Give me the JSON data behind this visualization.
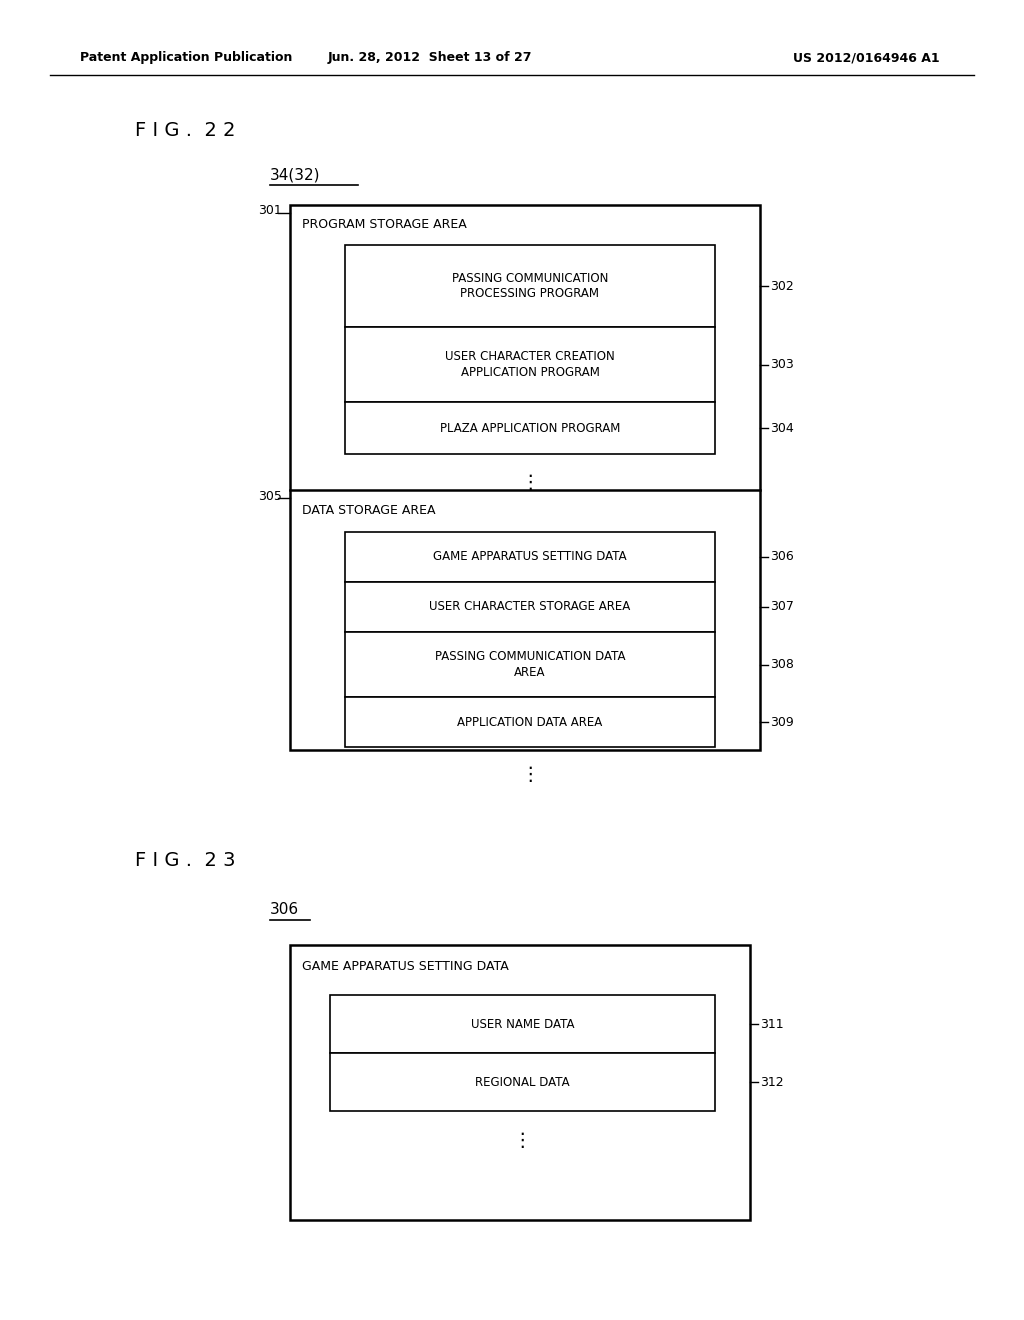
{
  "fig_width": 10.24,
  "fig_height": 13.2,
  "bg_color": "#ffffff",
  "header_left": "Patent Application Publication",
  "header_center": "Jun. 28, 2012  Sheet 13 of 27",
  "header_right": "US 2012/0164946 A1",
  "fig22_title": "F I G .  2 2",
  "fig22_label": "34(32)",
  "fig23_title": "F I G .  2 3",
  "fig23_label": "306",
  "prog_section_label": "PROGRAM STORAGE AREA",
  "data_section_label": "DATA STORAGE AREA",
  "fig23_outer_label": "GAME APPARATUS SETTING DATA",
  "prog_boxes": [
    {
      "label": "PASSING COMMUNICATION\nPROCESSING PROGRAM",
      "num": "302"
    },
    {
      "label": "USER CHARACTER CREATION\nAPPLICATION PROGRAM",
      "num": "303"
    },
    {
      "label": "PLAZA APPLICATION PROGRAM",
      "num": "304"
    }
  ],
  "data_boxes": [
    {
      "label": "GAME APPARATUS SETTING DATA",
      "num": "306"
    },
    {
      "label": "USER CHARACTER STORAGE AREA",
      "num": "307"
    },
    {
      "label": "PASSING COMMUNICATION DATA\nAREA",
      "num": "308"
    },
    {
      "label": "APPLICATION DATA AREA",
      "num": "309"
    }
  ],
  "fig23_boxes": [
    {
      "label": "USER NAME DATA",
      "num": "311"
    },
    {
      "label": "REGIONAL DATA",
      "num": "312"
    }
  ]
}
